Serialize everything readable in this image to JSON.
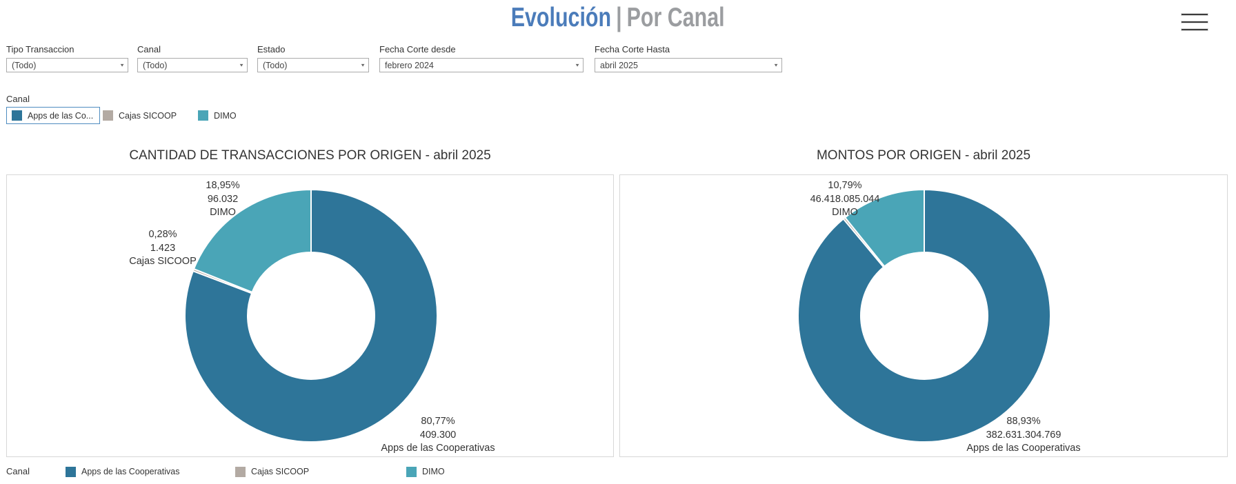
{
  "header": {
    "title_primary": "Evolución",
    "title_separator": "|",
    "title_secondary": "Por Canal"
  },
  "filters": [
    {
      "label": "Tipo Transaccion",
      "value": "(Todo)"
    },
    {
      "label": "Canal",
      "value": "(Todo)"
    },
    {
      "label": "Estado",
      "value": "(Todo)"
    },
    {
      "label": "Fecha Corte desde",
      "value": "febrero 2024"
    },
    {
      "label": "Fecha Corte Hasta",
      "value": "abril 2025"
    }
  ],
  "canal_filter": {
    "label": "Canal",
    "items": [
      {
        "label": "Apps de las Co...",
        "color": "#2e7599",
        "selected": true
      },
      {
        "label": "Cajas SICOOP",
        "color": "#b3aaa3",
        "selected": false
      },
      {
        "label": "DIMO",
        "color": "#4aa5b7",
        "selected": false
      }
    ]
  },
  "bottom_legend": {
    "label": "Canal",
    "items": [
      {
        "label": "Apps de las Cooperativas",
        "color": "#2e7599"
      },
      {
        "label": "Cajas SICOOP",
        "color": "#b3aaa3"
      },
      {
        "label": "DIMO",
        "color": "#4aa5b7"
      }
    ]
  },
  "colors": {
    "title_blue": "#4b7cba",
    "title_gray": "#9b9da0",
    "apps": "#2e7599",
    "cajas": "#b3aaa3",
    "dimo": "#4aa5b7",
    "selected_border": "#4e8cc0",
    "panel_border": "#d7d7d7"
  },
  "chart_data": [
    {
      "type": "pie",
      "subtype": "donut",
      "title": "CANTIDAD DE TRANSACCIONES POR ORIGEN - abril 2025",
      "start_angle_deg": 0,
      "direction": "clockwise",
      "inner_radius_ratio": 0.5,
      "slices": [
        {
          "category": "Apps de las Cooperativas",
          "pct": 80.77,
          "pct_label": "80,77%",
          "value": 409300,
          "value_label": "409.300",
          "color": "#2e7599",
          "label_visible": true
        },
        {
          "category": "Cajas SICOOP",
          "pct": 0.28,
          "pct_label": "0,28%",
          "value": 1423,
          "value_label": "1.423",
          "color": "#b3aaa3",
          "label_visible": true
        },
        {
          "category": "DIMO",
          "pct": 18.95,
          "pct_label": "18,95%",
          "value": 96032,
          "value_label": "96.032",
          "color": "#4aa5b7",
          "label_visible": true
        }
      ]
    },
    {
      "type": "pie",
      "subtype": "donut",
      "title": "MONTOS POR ORIGEN -  abril 2025",
      "start_angle_deg": 0,
      "direction": "clockwise",
      "inner_radius_ratio": 0.5,
      "slices": [
        {
          "category": "Apps de las Cooperativas",
          "pct": 88.93,
          "pct_label": "88,93%",
          "value": 382631304769,
          "value_label": "382.631.304.769",
          "color": "#2e7599",
          "label_visible": true
        },
        {
          "category": "Cajas SICOOP",
          "pct": 0.28,
          "color": "#b3aaa3",
          "label_visible": false
        },
        {
          "category": "DIMO",
          "pct": 10.79,
          "pct_label": "10,79%",
          "value": 46418085044,
          "value_label": "46.418.085.044",
          "color": "#4aa5b7",
          "label_visible": true
        }
      ]
    }
  ]
}
